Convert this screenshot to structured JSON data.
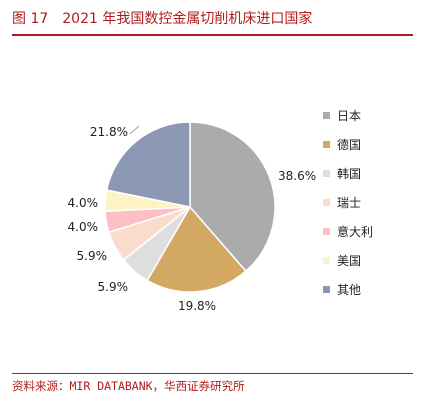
{
  "figure": {
    "number": "图 17",
    "title": "2021 年我国数控金属切削机床进口国家"
  },
  "source": "资料来源：MIR DATABANK，华西证券研究所",
  "chart_data": {
    "type": "pie",
    "categories": [
      "日本",
      "德国",
      "韩国",
      "瑞士",
      "意大利",
      "美国",
      "其他"
    ],
    "values": [
      38.6,
      19.8,
      5.9,
      5.9,
      4.0,
      4.0,
      21.8
    ],
    "data_labels": [
      "38.6%",
      "19.8%",
      "5.9%",
      "5.9%",
      "4.0%",
      "4.0%",
      "21.8%"
    ],
    "colors": [
      "#ababab",
      "#d2a862",
      "#dedede",
      "#f9dccb",
      "#fbbfc4",
      "#fdf3c4",
      "#8a98b4"
    ],
    "legend_position": "right",
    "start_angle": "12 o'clock",
    "direction": "clockwise"
  }
}
